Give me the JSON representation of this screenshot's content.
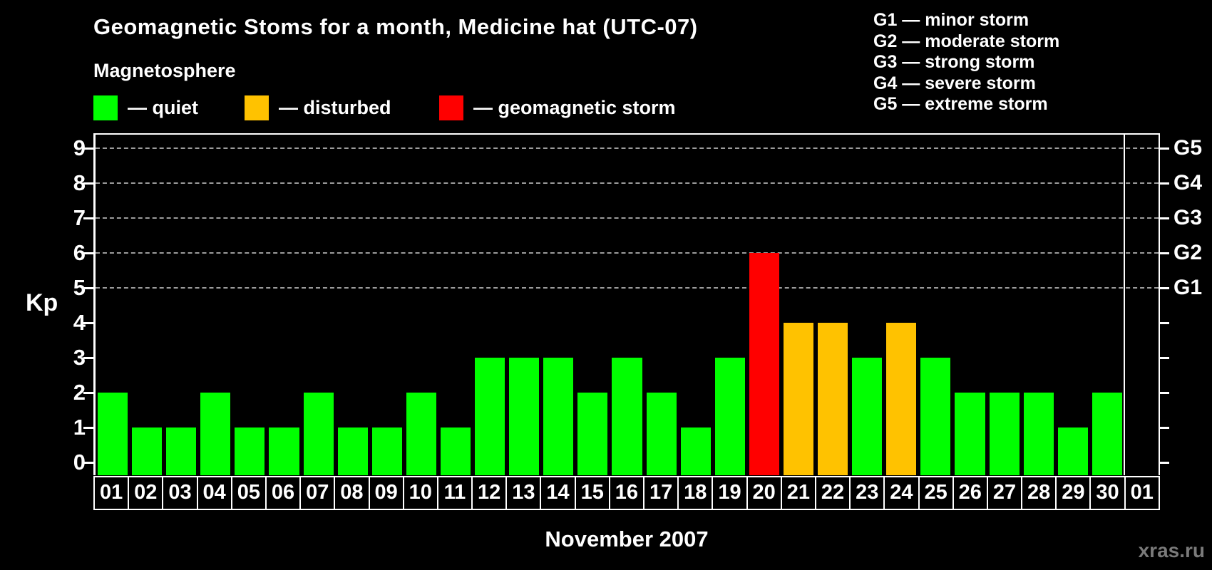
{
  "chart_data": {
    "type": "bar",
    "title": "Geomagnetic Stoms for a month, Medicine hat (UTC-07)",
    "subtitle": "Magnetosphere",
    "xlabel": "November 2007",
    "ylabel": "Kp",
    "ylim": [
      0,
      9
    ],
    "y_ticks": [
      0,
      1,
      2,
      3,
      4,
      5,
      6,
      7,
      8,
      9
    ],
    "grid": "dashed horizontal gridlines at Kp 5,6,7,8,9",
    "legend_position": "top-left",
    "legend": [
      {
        "status": "quiet",
        "label": "— quiet",
        "color": "#00ff00"
      },
      {
        "status": "disturbed",
        "label": "— disturbed",
        "color": "#ffc200"
      },
      {
        "status": "storm",
        "label": "— geomagnetic storm",
        "color": "#ff0000"
      }
    ],
    "storm_scale_legend": [
      "G1 — minor storm",
      "G2 — moderate storm",
      "G3 — strong storm",
      "G4 — severe storm",
      "G5 — extreme storm"
    ],
    "right_axis_labels": [
      {
        "kp": 5,
        "label": "G1"
      },
      {
        "kp": 6,
        "label": "G2"
      },
      {
        "kp": 7,
        "label": "G3"
      },
      {
        "kp": 8,
        "label": "G4"
      },
      {
        "kp": 9,
        "label": "G5"
      }
    ],
    "categories": [
      "01",
      "02",
      "03",
      "04",
      "05",
      "06",
      "07",
      "08",
      "09",
      "10",
      "11",
      "12",
      "13",
      "14",
      "15",
      "16",
      "17",
      "18",
      "19",
      "20",
      "21",
      "22",
      "23",
      "24",
      "25",
      "26",
      "27",
      "28",
      "29",
      "30",
      "01"
    ],
    "values": [
      2,
      1,
      1,
      2,
      1,
      1,
      2,
      1,
      1,
      2,
      1,
      3,
      3,
      3,
      2,
      3,
      2,
      1,
      3,
      6,
      4,
      4,
      3,
      4,
      3,
      2,
      2,
      2,
      1,
      2,
      null
    ],
    "statuses": [
      "quiet",
      "quiet",
      "quiet",
      "quiet",
      "quiet",
      "quiet",
      "quiet",
      "quiet",
      "quiet",
      "quiet",
      "quiet",
      "quiet",
      "quiet",
      "quiet",
      "quiet",
      "quiet",
      "quiet",
      "quiet",
      "quiet",
      "storm",
      "disturbed",
      "disturbed",
      "quiet",
      "disturbed",
      "quiet",
      "quiet",
      "quiet",
      "quiet",
      "quiet",
      "quiet",
      "none"
    ],
    "colors": {
      "quiet": "#00ff00",
      "disturbed": "#ffc200",
      "storm": "#ff0000"
    },
    "month_boundary_after_index": 29
  },
  "watermark": "xras.ru"
}
